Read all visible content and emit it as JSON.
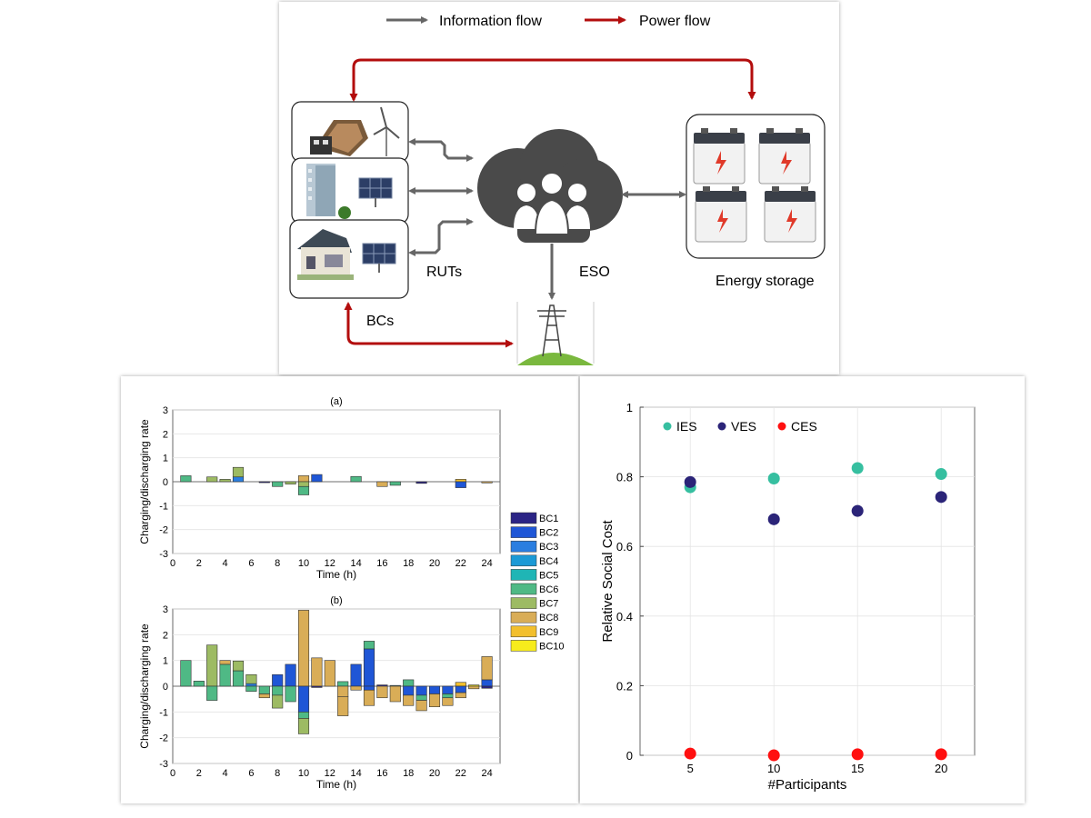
{
  "diagram": {
    "legend": {
      "info_label": "Information flow",
      "power_label": "Power flow"
    },
    "labels": {
      "ruts": "RUTs",
      "eso": "ESO",
      "bcs": "BCs",
      "storage": "Energy storage"
    },
    "colors": {
      "info": "#666666",
      "power": "#b30d0d",
      "cloud": "#4a4a4a"
    }
  },
  "chart_data": [
    {
      "type": "bar",
      "title": "(a)",
      "xlabel": "Time (h)",
      "ylabel": "Charging/discharging rate",
      "xlim": [
        0,
        25
      ],
      "ylim": [
        -3,
        3
      ],
      "xticks": [
        0,
        2,
        4,
        6,
        8,
        10,
        12,
        14,
        16,
        18,
        20,
        22,
        24
      ],
      "yticks": [
        -3,
        -2,
        -1,
        0,
        1,
        2,
        3
      ],
      "grid": true,
      "legend_entries": [
        "BC1",
        "BC2",
        "BC3",
        "BC4",
        "BC5",
        "BC6",
        "BC7",
        "BC8",
        "BC9",
        "BC10"
      ],
      "series_colors": [
        "#2b2485",
        "#1f56d6",
        "#2a7ee0",
        "#1b9ad6",
        "#1fb5b5",
        "#4fb985",
        "#9dbb63",
        "#d9ad57",
        "#f2bf2d",
        "#f7ec1c"
      ],
      "stacks": [
        {
          "x": 1,
          "segments": [
            [
              5,
              0.25
            ]
          ]
        },
        {
          "x": 3,
          "segments": [
            [
              6,
              0.2
            ]
          ]
        },
        {
          "x": 4,
          "segments": [
            [
              6,
              0.1
            ]
          ]
        },
        {
          "x": 5,
          "segments": [
            [
              2,
              0.2
            ],
            [
              6,
              0.4
            ]
          ]
        },
        {
          "x": 7,
          "segments": [
            [
              0,
              -0.04
            ]
          ]
        },
        {
          "x": 8,
          "segments": [
            [
              5,
              -0.2
            ]
          ]
        },
        {
          "x": 9,
          "segments": [
            [
              6,
              -0.1
            ]
          ]
        },
        {
          "x": 10,
          "segments": [
            [
              7,
              0.25
            ],
            [
              6,
              -0.2
            ],
            [
              5,
              -0.35
            ]
          ]
        },
        {
          "x": 11,
          "segments": [
            [
              1,
              0.3
            ]
          ]
        },
        {
          "x": 14,
          "segments": [
            [
              5,
              0.22
            ]
          ]
        },
        {
          "x": 16,
          "segments": [
            [
              7,
              -0.2
            ]
          ]
        },
        {
          "x": 17,
          "segments": [
            [
              5,
              -0.15
            ]
          ]
        },
        {
          "x": 19,
          "segments": [
            [
              0,
              -0.07
            ]
          ]
        },
        {
          "x": 22,
          "segments": [
            [
              8,
              0.1
            ],
            [
              1,
              -0.25
            ]
          ]
        },
        {
          "x": 24,
          "segments": [
            [
              7,
              -0.05
            ]
          ]
        }
      ]
    },
    {
      "type": "bar",
      "title": "(b)",
      "xlabel": "Time (h)",
      "ylabel": "Charging/discharging rate",
      "xlim": [
        0,
        25
      ],
      "ylim": [
        -3,
        3
      ],
      "xticks": [
        0,
        2,
        4,
        6,
        8,
        10,
        12,
        14,
        16,
        18,
        20,
        22,
        24
      ],
      "yticks": [
        -3,
        -2,
        -1,
        0,
        1,
        2,
        3
      ],
      "grid": true,
      "legend_entries": [
        "BC1",
        "BC2",
        "BC3",
        "BC4",
        "BC5",
        "BC6",
        "BC7",
        "BC8",
        "BC9",
        "BC10"
      ],
      "series_colors": [
        "#2b2485",
        "#1f56d6",
        "#2a7ee0",
        "#1b9ad6",
        "#1fb5b5",
        "#4fb985",
        "#9dbb63",
        "#d9ad57",
        "#f2bf2d",
        "#f7ec1c"
      ],
      "stacks": [
        {
          "x": 1,
          "segments": [
            [
              5,
              1.0
            ]
          ]
        },
        {
          "x": 2,
          "segments": [
            [
              5,
              0.2
            ]
          ]
        },
        {
          "x": 3,
          "segments": [
            [
              6,
              1.6
            ],
            [
              5,
              -0.55
            ]
          ]
        },
        {
          "x": 4,
          "segments": [
            [
              5,
              0.85
            ],
            [
              7,
              0.15
            ]
          ]
        },
        {
          "x": 5,
          "segments": [
            [
              5,
              0.6
            ],
            [
              6,
              0.38
            ]
          ]
        },
        {
          "x": 6,
          "segments": [
            [
              2,
              0.1
            ],
            [
              6,
              0.35
            ],
            [
              5,
              -0.2
            ]
          ]
        },
        {
          "x": 7,
          "segments": [
            [
              5,
              -0.3
            ],
            [
              7,
              -0.15
            ]
          ]
        },
        {
          "x": 8,
          "segments": [
            [
              1,
              0.45
            ],
            [
              5,
              -0.35
            ],
            [
              6,
              -0.5
            ]
          ]
        },
        {
          "x": 9,
          "segments": [
            [
              1,
              0.85
            ],
            [
              5,
              -0.6
            ]
          ]
        },
        {
          "x": 10,
          "segments": [
            [
              7,
              2.95
            ],
            [
              1,
              -1.0
            ],
            [
              5,
              -0.25
            ],
            [
              6,
              -0.6
            ]
          ]
        },
        {
          "x": 11,
          "segments": [
            [
              7,
              1.1
            ],
            [
              0,
              -0.05
            ]
          ]
        },
        {
          "x": 12,
          "segments": [
            [
              7,
              1.0
            ]
          ]
        },
        {
          "x": 13,
          "segments": [
            [
              5,
              0.18
            ],
            [
              7,
              -0.4
            ],
            [
              7,
              -0.75
            ]
          ]
        },
        {
          "x": 14,
          "segments": [
            [
              1,
              0.85
            ],
            [
              7,
              -0.15
            ]
          ]
        },
        {
          "x": 15,
          "segments": [
            [
              1,
              1.45
            ],
            [
              5,
              0.3
            ],
            [
              1,
              -0.15
            ],
            [
              7,
              -0.6
            ]
          ]
        },
        {
          "x": 16,
          "segments": [
            [
              0,
              0.05
            ],
            [
              7,
              -0.45
            ]
          ]
        },
        {
          "x": 17,
          "segments": [
            [
              5,
              0.03
            ],
            [
              7,
              -0.6
            ]
          ]
        },
        {
          "x": 18,
          "segments": [
            [
              5,
              0.25
            ],
            [
              1,
              -0.35
            ],
            [
              7,
              -0.4
            ]
          ]
        },
        {
          "x": 19,
          "segments": [
            [
              1,
              -0.35
            ],
            [
              5,
              -0.2
            ],
            [
              7,
              -0.4
            ]
          ]
        },
        {
          "x": 20,
          "segments": [
            [
              1,
              -0.3
            ],
            [
              7,
              -0.5
            ]
          ]
        },
        {
          "x": 21,
          "segments": [
            [
              1,
              -0.3
            ],
            [
              5,
              -0.15
            ],
            [
              7,
              -0.3
            ]
          ]
        },
        {
          "x": 22,
          "segments": [
            [
              8,
              0.15
            ],
            [
              1,
              -0.25
            ],
            [
              7,
              -0.2
            ]
          ]
        },
        {
          "x": 23,
          "segments": [
            [
              9,
              0.05
            ],
            [
              7,
              -0.1
            ]
          ]
        },
        {
          "x": 24,
          "segments": [
            [
              1,
              0.25
            ],
            [
              7,
              0.9
            ],
            [
              0,
              -0.08
            ]
          ]
        }
      ]
    },
    {
      "type": "scatter",
      "xlabel": "#Participants",
      "ylabel": "Relative Social Cost",
      "xlim": [
        2,
        22
      ],
      "ylim": [
        0,
        1
      ],
      "xticks": [
        5,
        10,
        15,
        20
      ],
      "yticks": [
        0,
        0.2,
        0.4,
        0.6,
        0.8,
        1
      ],
      "ytick_labels": [
        "0",
        "0.2",
        "0.4",
        "0.6",
        "0.8",
        "1"
      ],
      "grid": true,
      "legend_placement": "top-left",
      "series": [
        {
          "name": "IES",
          "color": "#36bfa0",
          "x": [
            5,
            10,
            15,
            20
          ],
          "y": [
            0.77,
            0.795,
            0.825,
            0.808
          ]
        },
        {
          "name": "VES",
          "color": "#2b2478",
          "x": [
            5,
            10,
            15,
            20
          ],
          "y": [
            0.785,
            0.678,
            0.702,
            0.742
          ]
        },
        {
          "name": "CES",
          "color": "#ff1010",
          "x": [
            5,
            10,
            15,
            20
          ],
          "y": [
            0.005,
            0.0,
            0.003,
            0.003
          ]
        }
      ]
    }
  ]
}
